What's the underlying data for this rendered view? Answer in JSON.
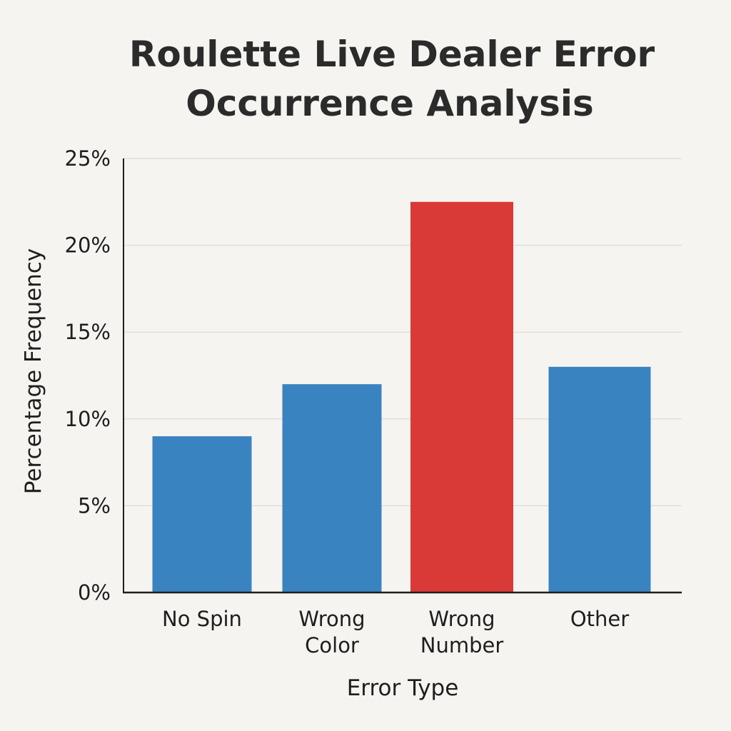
{
  "chart_data": {
    "type": "bar",
    "title_lines": [
      "Roulette Live Dealer Error",
      "Occurrence Analysis"
    ],
    "xlabel": "Error Type",
    "ylabel": "Percentage Frequency",
    "categories": [
      [
        "No Spin"
      ],
      [
        "Wrong",
        "Color"
      ],
      [
        "Wrong",
        "Number"
      ],
      [
        "Other"
      ]
    ],
    "values": [
      9,
      12,
      22.5,
      13
    ],
    "bar_colors": [
      "#3a83c1",
      "#3a83c1",
      "#d93a37",
      "#3a83c1"
    ],
    "ylim": [
      0,
      25
    ],
    "yticks": [
      0,
      5,
      10,
      15,
      20,
      25
    ],
    "ytick_labels": [
      "0%",
      "5%",
      "10%",
      "15%",
      "20%",
      "25%"
    ],
    "grid": true,
    "legend": "none"
  }
}
